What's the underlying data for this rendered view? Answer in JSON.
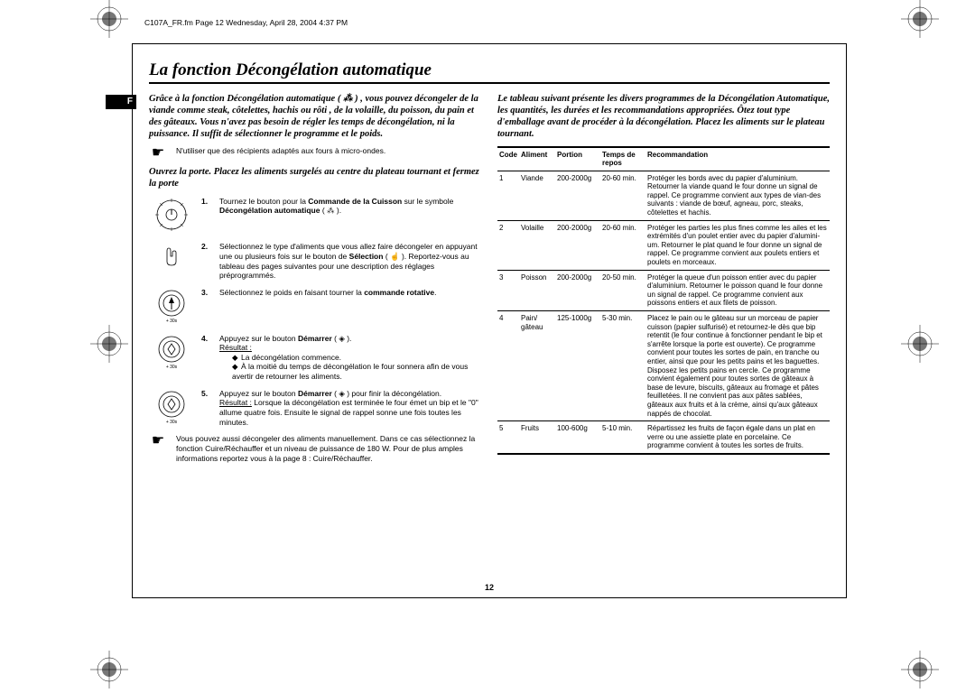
{
  "meta": {
    "header": "C107A_FR.fm  Page 12  Wednesday, April 28, 2004  4:37 PM",
    "page_number": "12",
    "lang_badge": "F"
  },
  "title": "La fonction Décongélation automatique",
  "left": {
    "intro": "Grâce à la fonction Décongélation automatique ( ⁂ ) , vous pouvez décongeler de la viande comme steak, côtelettes, hachis ou rôti , de la volaille, du poisson, du pain et des gâteaux. Vous n'avez pas besoin de régler les temps de décongélation, ni la puissance. Il suffit de sélectionner le programme et le poids.",
    "note1": "N'utiliser que des récipients adaptés aux fours à micro-ondes.",
    "intro2": "Ouvrez la porte. Placez les aliments surgelés au centre du plateau tournant et fermez la porte",
    "steps": [
      {
        "num": "1.",
        "text_a": "Tournez le bouton pour la ",
        "bold_a": "Commande de la Cuisson",
        "text_b": " sur le symbole ",
        "bold_b": "Décongélation automatique",
        "text_c": " ( ⁂ )."
      },
      {
        "num": "2.",
        "text_a": "Sélectionnez le type d'aliments que vous allez faire décongeler en appuyant une ou plusieurs fois sur le bouton de ",
        "bold_a": "Sélection",
        "text_b": " ( ☝ ). Reportez-vous au tableau des pages suivantes pour une description des réglages préprogrammés."
      },
      {
        "num": "3.",
        "text_a": "Sélectionnez le poids en faisant tourner la ",
        "bold_a": "commande rotative",
        "text_b": "."
      },
      {
        "num": "4.",
        "text_a": "Appuyez sur le bouton ",
        "bold_a": "Démarrer",
        "text_b": " ( ◈ ).",
        "result_label": "Résultat :",
        "sub": [
          "La décongélation commence.",
          "À la moitié du temps de décongélation le four sonnera afin de vous avertir de retourner les aliments."
        ]
      },
      {
        "num": "5.",
        "text_a": "Appuyez sur le bouton ",
        "bold_a": "Démarrer",
        "text_b": " ( ◈ ) pour finir la décongélation.",
        "result_label": "Résultat :",
        "result_text": "Lorsque la décongélation est terminée le four émet un bip et le \"0\" allume quatre fois. Ensuite le signal de rappel sonne une fois toutes les minutes."
      }
    ],
    "note2": "Vous pouvez aussi décongeler des aliments manuellement. Dans ce cas sélectionnez la fonction Cuire/Réchauffer et un niveau de puissance de 180 W. Pour de plus amples informations reportez vous à la page 8 : Cuire/Réchauffer."
  },
  "right": {
    "intro": "Le tableau suivant présente les divers programmes de la Décongélation Automatique, les quantités, les durées et les recommandations appropriées. Ôtez tout type d'emballage avant de procéder à la décongélation. Placez les aliments sur le plateau tournant.",
    "headers": {
      "code": "Code",
      "aliment": "Aliment",
      "portion": "Portion",
      "temps": "Temps de repos",
      "rec": "Recommandation"
    },
    "rows": [
      {
        "code": "1",
        "aliment": "Viande",
        "portion": "200-2000g",
        "temps": "20-60 min.",
        "rec": "Protéger les bords avec du papier d'aluminium. Retourner la viande quand le four donne un signal de rappel. Ce programme convient aux types de vian-des suivants : viande de bœuf, agneau, porc, steaks, côtelettes et hachis."
      },
      {
        "code": "2",
        "aliment": "Volaille",
        "portion": "200-2000g",
        "temps": "20-60 min.",
        "rec": "Protéger les parties les plus fines comme les ailes et les extrémités d'un poulet entier avec du papier d'alumini-um. Retourner le plat quand le four donne un signal de rappel. Ce programme convient aux poulets entiers et poulets en morceaux."
      },
      {
        "code": "3",
        "aliment": "Poisson",
        "portion": "200-2000g",
        "temps": "20-50 min.",
        "rec": "Protéger la queue d'un poisson entier avec du papier d'aluminium. Retourner le poisson quand le four donne un signal de rappel. Ce programme convient aux poissons entiers et aux filets de poisson."
      },
      {
        "code": "4",
        "aliment": "Pain/\ngâteau",
        "portion": "125-1000g",
        "temps": "5-30 min.",
        "rec": "Placez le pain ou le gâteau sur un morceau de papier cuisson (papier sulfurisé) et retournez-le dès que bip retentit (le four continue à fonctionner pendant le bip et s'arrête lorsque la porte est ouverte). Ce programme convient pour toutes les sortes de pain, en tranche ou entier, ainsi que pour les petits pains et les baguettes. Disposez les petits pains en cercle. Ce programme convient également pour toutes sortes de gâteaux à base de levure, biscuits, gâteaux au fromage et pâtes feuilletées. Il ne convient pas aux pâtes sablées, gâteaux aux fruits et à la crème, ainsi qu'aux gâteaux nappés de chocolat."
      },
      {
        "code": "5",
        "aliment": "Fruits",
        "portion": "100-600g",
        "temps": "5-10 min.",
        "rec": "Répartissez les fruits de façon égale dans un plat en verre ou une assiette plate en porcelaine. Ce programme convient à toutes les sortes de fruits."
      }
    ]
  }
}
